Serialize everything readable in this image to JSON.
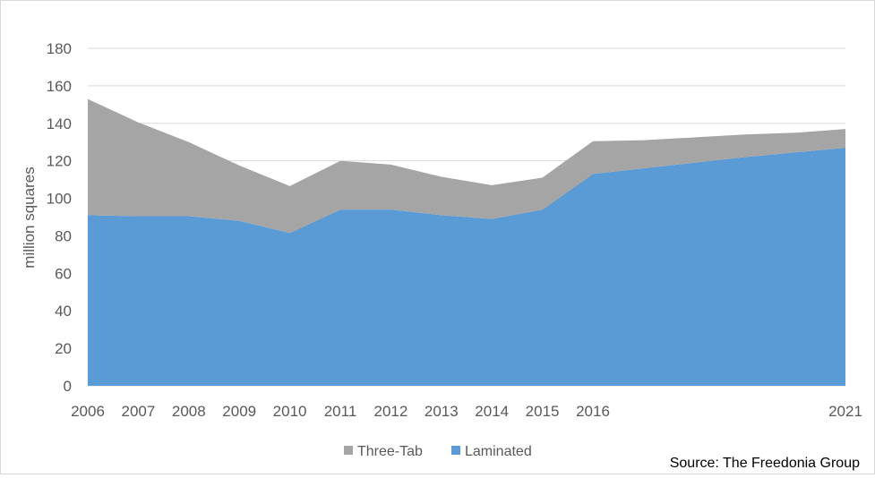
{
  "chart_data": {
    "type": "area",
    "stacked": true,
    "x": [
      2006,
      2007,
      2008,
      2009,
      2010,
      2011,
      2012,
      2013,
      2014,
      2015,
      2016,
      2017,
      2018,
      2019,
      2020,
      2021
    ],
    "x_tick_labels": [
      "2006",
      "2007",
      "2008",
      "2009",
      "2010",
      "2011",
      "2012",
      "2013",
      "2014",
      "2015",
      "2016",
      "",
      "",
      "",
      "",
      "2021"
    ],
    "series": [
      {
        "name": "Laminated",
        "color": "#5b9bd5",
        "values": [
          91,
          90.5,
          90.5,
          88,
          81.5,
          94,
          94,
          91,
          89,
          94,
          113,
          116,
          119,
          122,
          124.5,
          127
        ]
      },
      {
        "name": "Three-Tab",
        "color": "#a5a5a5",
        "values": [
          62,
          50,
          39.5,
          29.5,
          25,
          26,
          24,
          20.5,
          18,
          17,
          17.5,
          15,
          13.5,
          12,
          10.5,
          10
        ]
      }
    ],
    "ylabel": "million squares",
    "xlabel": "",
    "title": "",
    "ylim": [
      0,
      180
    ],
    "yticks": [
      0,
      20,
      40,
      60,
      80,
      100,
      120,
      140,
      160,
      180
    ],
    "grid": "horizontal",
    "legend_position": "bottom",
    "legend_order": [
      "Three-Tab",
      "Laminated"
    ]
  },
  "source_text": "Source: The Freedonia Group"
}
